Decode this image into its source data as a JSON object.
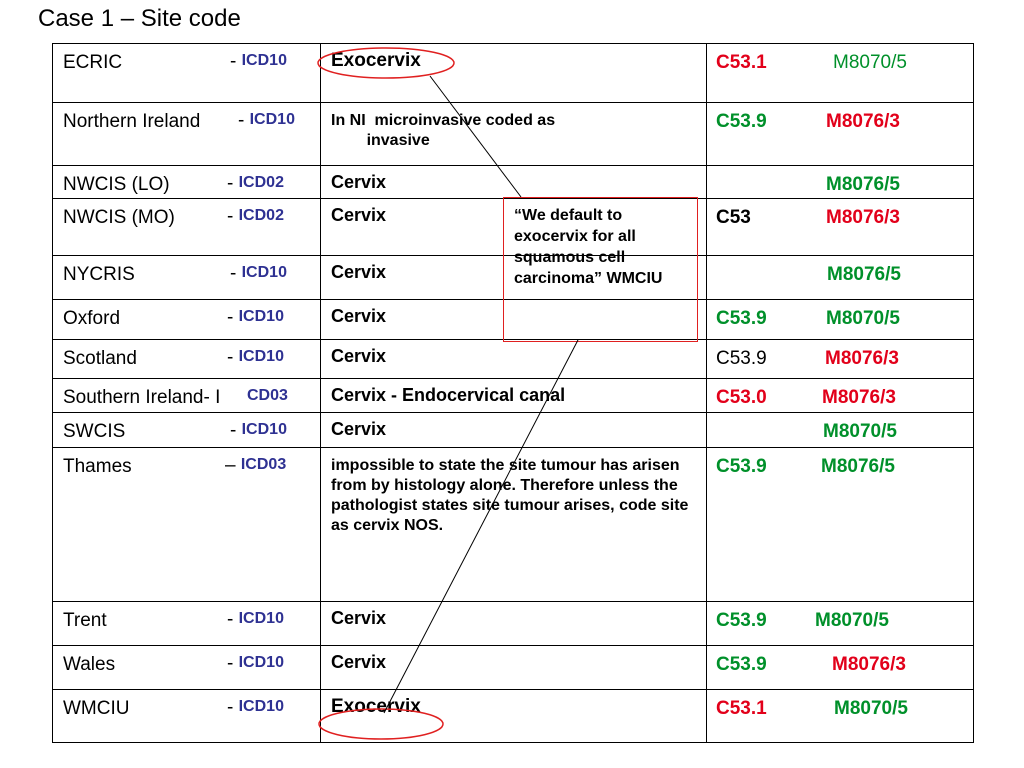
{
  "title": "Case 1 – Site code",
  "rows": [
    {
      "registry": "ECRIC",
      "sep": "-",
      "icd": "ICD10",
      "site": "Exocervix",
      "topo": "C53.1",
      "topo_color": "red",
      "topo_bold": true,
      "morph": "M8070/5",
      "morph_color": "green",
      "morph_bold": false
    },
    {
      "registry": "Northern Ireland",
      "sep": "-",
      "icd": "ICD10",
      "site": "In NI  microinvasive coded as\n        invasive",
      "topo": "C53.9",
      "topo_color": "green",
      "topo_bold": true,
      "morph": "M8076/3",
      "morph_color": "red",
      "morph_bold": true
    },
    {
      "registry": "NWCIS (LO)",
      "sep": "-",
      "icd": "ICD02",
      "site": "Cervix",
      "topo": "",
      "topo_color": "black",
      "topo_bold": false,
      "morph": "M8076/5",
      "morph_color": "green",
      "morph_bold": true
    },
    {
      "registry": "NWCIS (MO)",
      "sep": "-",
      "icd": "ICD02",
      "site": "Cervix",
      "topo": "C53",
      "topo_color": "black",
      "topo_bold": true,
      "morph": "M8076/3",
      "morph_color": "red",
      "morph_bold": true
    },
    {
      "registry": "NYCRIS",
      "sep": "-",
      "icd": "ICD10",
      "site": " Cervix",
      "topo": "",
      "topo_color": "black",
      "topo_bold": false,
      "morph": "M8076/5",
      "morph_color": "green",
      "morph_bold": true
    },
    {
      "registry": "Oxford",
      "sep": "-",
      "icd": "ICD10",
      "site": "Cervix",
      "topo": "C53.9",
      "topo_color": "green",
      "topo_bold": true,
      "morph": "M8070/5",
      "morph_color": "green",
      "morph_bold": true
    },
    {
      "registry": "Scotland",
      "sep": "-",
      "icd": "ICD10",
      "site": "Cervix",
      "topo": "C53.9",
      "topo_color": "black",
      "topo_bold": false,
      "morph": "M8076/3",
      "morph_color": "red",
      "morph_bold": true
    },
    {
      "registry": "Southern Ireland- I",
      "sep": "",
      "icd": "CD03",
      "site": "Cervix - Endocervical canal",
      "topo": "C53.0",
      "topo_color": "red",
      "topo_bold": true,
      "morph": "M8076/3",
      "morph_color": "red",
      "morph_bold": true
    },
    {
      "registry": "SWCIS",
      "sep": "-",
      "icd": "ICD10",
      "site": "Cervix",
      "topo": "",
      "topo_color": "black",
      "topo_bold": false,
      "morph": "M8070/5",
      "morph_color": "green",
      "morph_bold": true
    },
    {
      "registry": "Thames",
      "sep": "–",
      "icd": "ICD03",
      "site": "impossible to state the site tumour has arisen from by histology alone. Therefore unless the pathologist states site tumour arises, code site as cervix NOS.",
      "topo": "C53.9",
      "topo_color": "green",
      "topo_bold": true,
      "morph": "M8076/5",
      "morph_color": "green",
      "morph_bold": true
    },
    {
      "registry": "Trent",
      "sep": "-",
      "icd": "ICD10",
      "site": "Cervix",
      "topo": "C53.9",
      "topo_color": "green",
      "topo_bold": true,
      "morph": "M8070/5",
      "morph_color": "green",
      "morph_bold": true
    },
    {
      "registry": "Wales",
      "sep": "-",
      "icd": "ICD10",
      "site": "Cervix",
      "topo": "C53.9",
      "topo_color": "green",
      "topo_bold": true,
      "morph": "M8076/3",
      "morph_color": "red",
      "morph_bold": true
    },
    {
      "registry": "WMCIU",
      "sep": "-",
      "icd": "ICD10",
      "site": "Exocervix",
      "topo": "C53.1",
      "topo_color": "red",
      "topo_bold": true,
      "morph": "M8070/5",
      "morph_color": "green",
      "morph_bold": true
    }
  ],
  "callout": "“We default to exocervix for all squamous cell carcinoma” WMCIU",
  "colors": {
    "red": "#e2001a",
    "green": "#00902a",
    "icd_blue": "#2e3192",
    "callout_border": "#e02020"
  }
}
